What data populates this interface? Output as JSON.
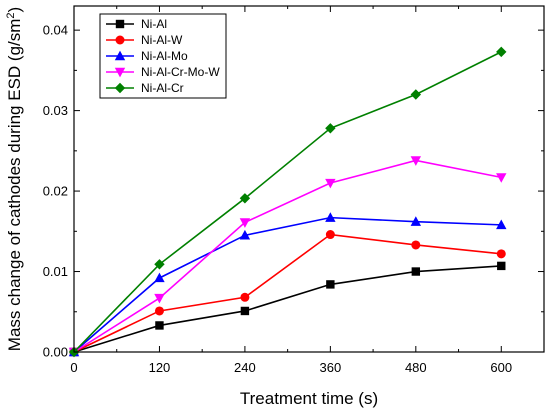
{
  "chart_data": {
    "type": "line",
    "title": "",
    "xlabel": "Treatment time (s)",
    "ylabel": "Mass change of cathodes during ESD (g/sm",
    "ylabel_superscript": "2",
    "ylabel_suffix": ")",
    "x": [
      0,
      120,
      240,
      360,
      480,
      600
    ],
    "x_ticks": [
      "0",
      "120",
      "240",
      "360",
      "480",
      "600"
    ],
    "y_ticks": [
      "0.00",
      "0.01",
      "0.02",
      "0.03",
      "0.04"
    ],
    "xlim": [
      0,
      660
    ],
    "ylim": [
      0,
      0.043
    ],
    "grid": false,
    "legend_position": "top-left",
    "series": [
      {
        "name": "Ni-Al",
        "color": "#000000",
        "marker": "square",
        "values": [
          0.0,
          0.0033,
          0.0051,
          0.0084,
          0.01,
          0.0107
        ]
      },
      {
        "name": "Ni-Al-W",
        "color": "#ff0000",
        "marker": "circle",
        "values": [
          0.0,
          0.0051,
          0.0068,
          0.0146,
          0.0133,
          0.0122
        ]
      },
      {
        "name": "Ni-Al-Mo",
        "color": "#0000ff",
        "marker": "triangle-up",
        "values": [
          0.0,
          0.0092,
          0.0145,
          0.0167,
          0.0162,
          0.0158
        ]
      },
      {
        "name": "Ni-Al-Cr-Mo-W",
        "color": "#ff00ff",
        "marker": "triangle-down",
        "values": [
          0.0,
          0.0067,
          0.0161,
          0.021,
          0.0238,
          0.0217
        ]
      },
      {
        "name": "Ni-Al-Cr",
        "color": "#008000",
        "marker": "diamond",
        "values": [
          0.0,
          0.0109,
          0.0191,
          0.0278,
          0.032,
          0.0373
        ]
      }
    ]
  }
}
